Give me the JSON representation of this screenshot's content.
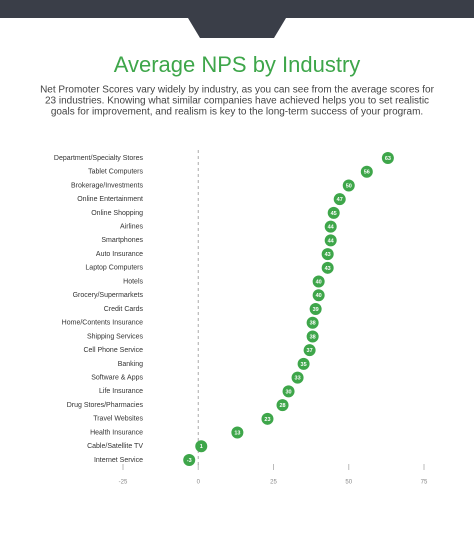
{
  "chart_data": {
    "type": "dot",
    "title": "Average NPS by Industry",
    "subtitle": [
      "Net Promoter Scores vary widely by industry, as you can see from the average scores for",
      "23 industries. Knowing what similar companies have achieved helps you to set realistic",
      "goals for improvement, and realism is key to the long-term success of your program."
    ],
    "categories": [
      "Department/Specialty Stores",
      "Tablet Computers",
      "Brokerage/Investments",
      "Online Entertainment",
      "Online Shopping",
      "Airlines",
      "Smartphones",
      "Auto Insurance",
      "Laptop Computers",
      "Hotels",
      "Grocery/Supermarkets",
      "Credit Cards",
      "Home/Contents Insurance",
      "Shipping Services",
      "Cell Phone Service",
      "Banking",
      "Software & Apps",
      "Life Insurance",
      "Drug Stores/Pharmacies",
      "Travel Websites",
      "Health Insurance",
      "Cable/Satellite TV",
      "Internet Service"
    ],
    "values": [
      63,
      56,
      50,
      47,
      45,
      44,
      44,
      43,
      43,
      40,
      40,
      39,
      38,
      38,
      37,
      35,
      33,
      30,
      28,
      23,
      13,
      1,
      -3
    ],
    "color": "#3ea64a",
    "xlim": [
      -25,
      75
    ],
    "xticks": [
      -25,
      0,
      25,
      50,
      75
    ],
    "grid": false
  }
}
